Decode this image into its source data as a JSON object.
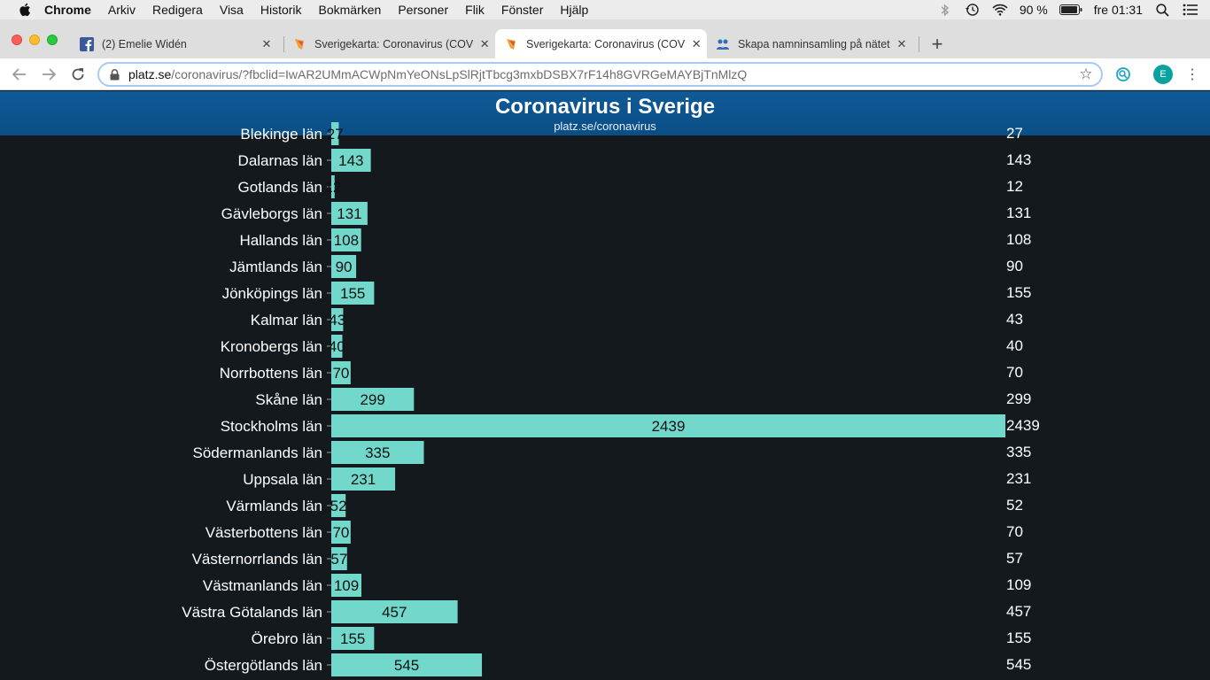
{
  "menubar": {
    "app": "Chrome",
    "items": [
      "Arkiv",
      "Redigera",
      "Visa",
      "Historik",
      "Bokmärken",
      "Personer",
      "Flik",
      "Fönster",
      "Hjälp"
    ],
    "battery": "90 %",
    "clock": "fre 01:31"
  },
  "tabs": [
    {
      "title": "(2) Emelie Widén",
      "favicon": "facebook-icon"
    },
    {
      "title": "Sverigekarta: Coronavirus (COV",
      "favicon": "map-favicon-icon"
    },
    {
      "title": "Sverigekarta: Coronavirus (COV",
      "favicon": "map-favicon-icon",
      "active": true
    },
    {
      "title": "Skapa namninsamling på nätet",
      "favicon": "petition-favicon-icon"
    }
  ],
  "toolbar": {
    "url_host": "platz.se",
    "url_path": "/coronavirus/?fbclid=IwAR2UMmACWpNmYeONsLpSlRjtTbcg3mxbDSBX7rF14h8GVRGeMAYBjTnMlzQ",
    "avatar_initial": "E"
  },
  "page": {
    "title": "Coronavirus i Sverige",
    "subtitle": "platz.se/coronavirus"
  },
  "colors": {
    "bar": "#72d8cb",
    "background": "#13191c",
    "header": "#0e5a98"
  },
  "chart_data": {
    "type": "bar",
    "orientation": "horizontal",
    "categories": [
      "Blekinge län",
      "Dalarnas län",
      "Gotlands län",
      "Gävleborgs län",
      "Hallands län",
      "Jämtlands län",
      "Jönköpings län",
      "Kalmar län",
      "Kronobergs län",
      "Norrbottens län",
      "Skåne län",
      "Stockholms län",
      "Södermanlands län",
      "Uppsala län",
      "Värmlands län",
      "Västerbottens län",
      "Västernorrlands län",
      "Västmanlands län",
      "Västra Götalands län",
      "Örebro län",
      "Östergötlands län"
    ],
    "values": [
      27,
      143,
      12,
      131,
      108,
      90,
      155,
      43,
      40,
      70,
      299,
      2439,
      335,
      231,
      52,
      70,
      57,
      109,
      457,
      155,
      545
    ],
    "right_labels": [
      "27",
      "143",
      "12",
      "131",
      "108",
      "90",
      "155",
      "43",
      "40",
      "70",
      "299",
      "2439",
      "335",
      "231",
      "52",
      "70",
      "57",
      "109",
      "457",
      "155",
      "545"
    ],
    "xlim": [
      0,
      2439
    ],
    "grid": false,
    "legend": "none"
  }
}
